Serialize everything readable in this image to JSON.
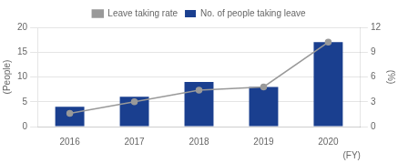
{
  "chart_data": {
    "type": "bar",
    "categories": [
      "2016",
      "2017",
      "2018",
      "2019",
      "2020"
    ],
    "series": [
      {
        "name": "No. of people taking leave",
        "type": "bar",
        "color": "#1a3f8f",
        "values": [
          4,
          6,
          9,
          8,
          17
        ]
      },
      {
        "name": "Leave taking rate",
        "type": "line",
        "axis": "y2",
        "color": "#999999",
        "marker": "circle",
        "values": [
          1.6,
          3.0,
          4.4,
          4.8,
          10.2
        ]
      }
    ],
    "xlabel": "(FY)",
    "ylabel": "(People)",
    "y2label": "(%)",
    "ylim": [
      0,
      20
    ],
    "yticks": [
      0,
      5,
      10,
      15,
      20
    ],
    "y2lim": [
      0,
      12.0
    ],
    "y2ticks": [
      0.0,
      3.0,
      6.0,
      9.0,
      12.0
    ],
    "grid": true,
    "legend": "top"
  }
}
